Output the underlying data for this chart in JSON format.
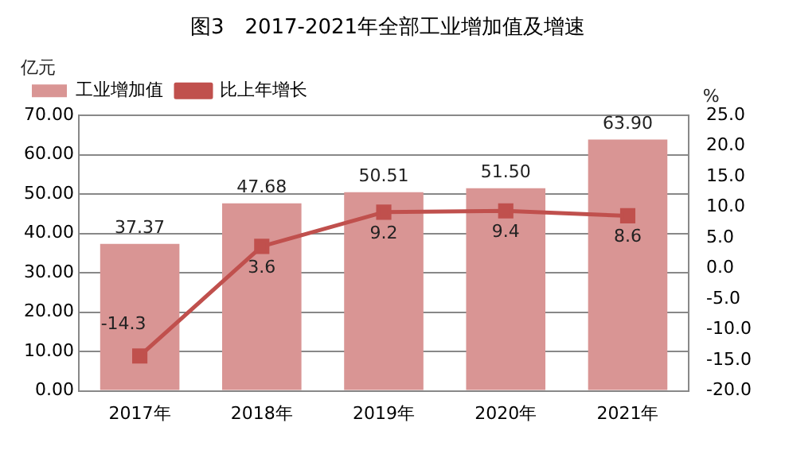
{
  "chart_data": {
    "type": "bar",
    "title": "图3　2017-2021年全部工业增加值及增速",
    "ylabel": "亿元",
    "y2label": "%",
    "categories": [
      "2017年",
      "2018年",
      "2019年",
      "2020年",
      "2021年"
    ],
    "series": [
      {
        "name": "工业增加值",
        "color": "#d99594",
        "values": [
          37.37,
          47.68,
          50.51,
          51.5,
          63.9
        ],
        "value_labels": [
          "37.37",
          "47.68",
          "50.51",
          "51.50",
          "63.90"
        ]
      },
      {
        "name": "比上年增长",
        "type": "line",
        "axis": "y2",
        "color": "#c0504d",
        "marker": "square",
        "values": [
          -14.3,
          3.6,
          9.2,
          9.4,
          8.6
        ],
        "value_labels": [
          "-14.3",
          "3.6",
          "9.2",
          "9.4",
          "8.6"
        ]
      }
    ],
    "ylim": [
      0,
      70
    ],
    "yticks": [
      {
        "value": 0,
        "label": "0.00"
      },
      {
        "value": 10,
        "label": "10.00"
      },
      {
        "value": 20,
        "label": "20.00"
      },
      {
        "value": 30,
        "label": "30.00"
      },
      {
        "value": 40,
        "label": "40.00"
      },
      {
        "value": 50,
        "label": "50.00"
      },
      {
        "value": 60,
        "label": "60.00"
      },
      {
        "value": 70,
        "label": "70.00"
      }
    ],
    "y2lim": [
      -20,
      25
    ],
    "y2ticks": [
      {
        "value": -20,
        "label": "-20.0"
      },
      {
        "value": -15,
        "label": "-15.0"
      },
      {
        "value": -10,
        "label": "-10.0"
      },
      {
        "value": -5,
        "label": "-5.0"
      },
      {
        "value": 0,
        "label": "0.0"
      },
      {
        "value": 5,
        "label": "5.0"
      },
      {
        "value": 10,
        "label": "10.0"
      },
      {
        "value": 15,
        "label": "15.0"
      },
      {
        "value": 20,
        "label": "20.0"
      },
      {
        "value": 25,
        "label": "25.0"
      }
    ],
    "grid": "y",
    "legend": "top"
  }
}
